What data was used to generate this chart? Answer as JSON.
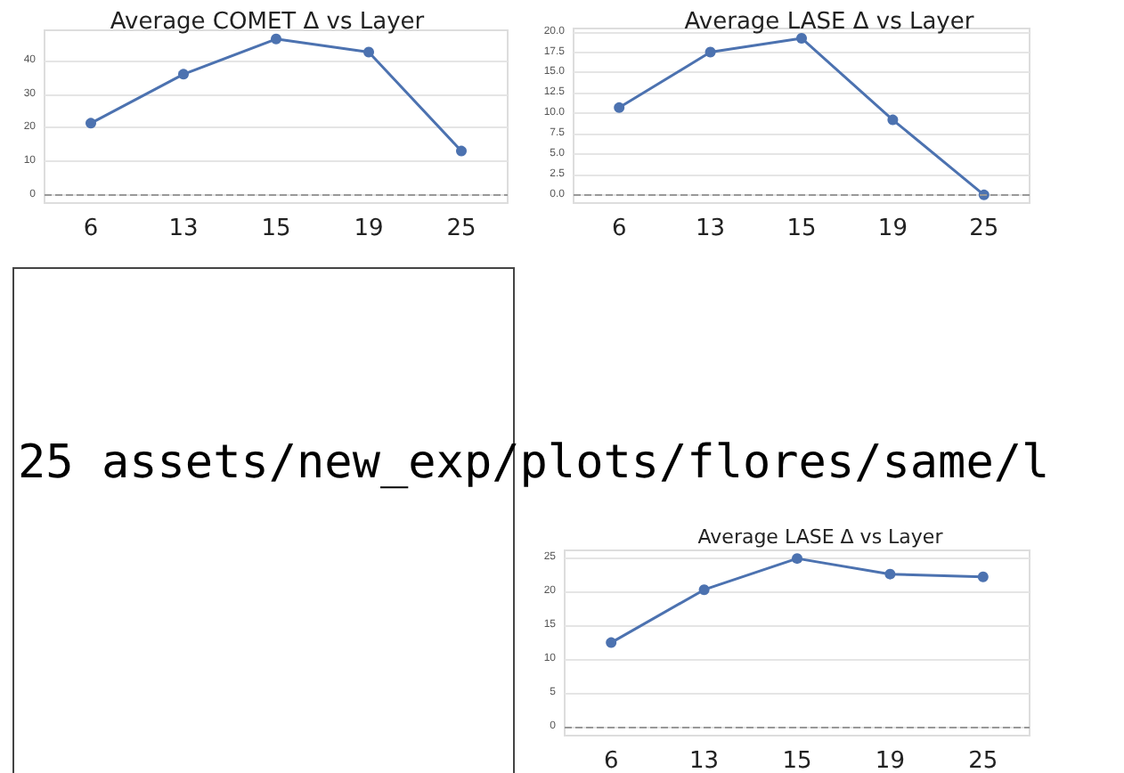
{
  "chart_data": [
    {
      "type": "line",
      "title": "Average COMET Δ vs Layer",
      "categories": [
        "6",
        "13",
        "15",
        "19",
        "25"
      ],
      "series": [
        {
          "color": "#4c72b0",
          "values": [
            21.3,
            35.9,
            46.4,
            42.5,
            13.0
          ]
        }
      ],
      "ylim": [
        -2.5,
        49
      ],
      "yticks": [
        0,
        10,
        20,
        30,
        40
      ],
      "grid": "y",
      "marker": "circle",
      "ref_lines": [
        {
          "axis": "y",
          "value": 0,
          "color": "#999999",
          "line_style": "dashed"
        }
      ]
    },
    {
      "type": "line",
      "title": "Average LASE Δ vs Layer",
      "categories": [
        "6",
        "13",
        "15",
        "19",
        "25"
      ],
      "series": [
        {
          "color": "#4c72b0",
          "values": [
            10.7,
            17.5,
            19.2,
            9.2,
            0.0
          ]
        }
      ],
      "ylim": [
        -1,
        20.4
      ],
      "yticks": [
        {
          "value": 0,
          "label": "0.0"
        },
        {
          "value": 2.5,
          "label": "2.5"
        },
        {
          "value": 5,
          "label": "5.0"
        },
        {
          "value": 7.5,
          "label": "7.5"
        },
        {
          "value": 10,
          "label": "10.0"
        },
        {
          "value": 12.5,
          "label": "12.5"
        },
        {
          "value": 15,
          "label": "15.0"
        },
        {
          "value": 17.5,
          "label": "17.5"
        },
        {
          "value": 20,
          "label": "20.0"
        }
      ],
      "grid": "y",
      "marker": "circle",
      "ref_lines": [
        {
          "axis": "y",
          "value": 0,
          "color": "#999999",
          "line_style": "dashed"
        }
      ]
    },
    {
      "type": "other",
      "annotations": [
        "25 assets/new_exp/plots/flores/same/l"
      ]
    },
    {
      "type": "line",
      "title": "Average LASE Δ vs Layer",
      "categories": [
        "6",
        "13",
        "15",
        "19",
        "25"
      ],
      "series": [
        {
          "color": "#4c72b0",
          "values": [
            12.4,
            20.2,
            24.8,
            22.5,
            22.1
          ]
        }
      ],
      "ylim": [
        -1.3,
        26
      ],
      "yticks": [
        0,
        5,
        10,
        15,
        20,
        25
      ],
      "grid": "y",
      "marker": "circle",
      "ref_lines": [
        {
          "axis": "y",
          "value": 0,
          "color": "#999999",
          "line_style": "dashed"
        }
      ]
    }
  ]
}
